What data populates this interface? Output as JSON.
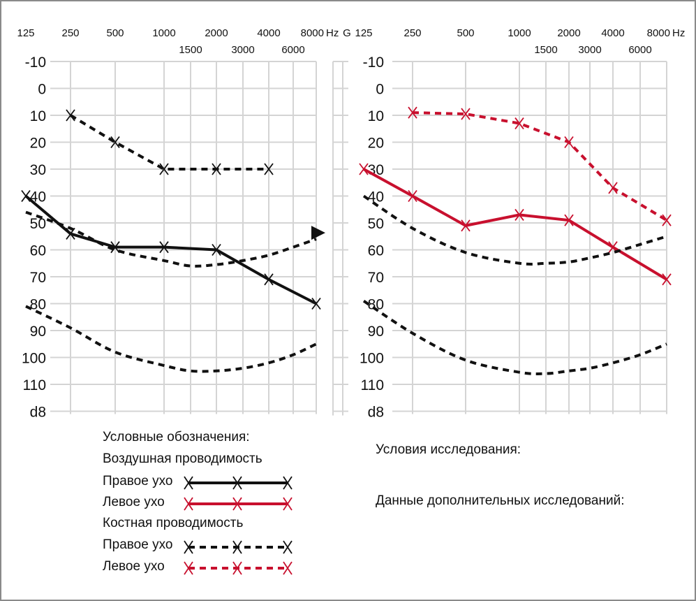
{
  "chart_data": [
    {
      "type": "line",
      "title": "",
      "xlabel": "Hz",
      "ylabel": "d8",
      "x_ticks_top": [
        "125",
        "250",
        "500",
        "1000",
        "2000",
        "4000",
        "8000"
      ],
      "x_ticks_bottom": [
        "1500",
        "3000",
        "6000"
      ],
      "x_unit": "Hz",
      "extra_column_label": "G",
      "y_ticks": [
        "-10",
        "0",
        "10",
        "20",
        "30",
        "40",
        "50",
        "60",
        "70",
        "80",
        "90",
        "100",
        "110"
      ],
      "y_unit_label": "d8",
      "ylim": [
        -10,
        120
      ],
      "y_inverted": true,
      "grid": true,
      "series": [
        {
          "name": "Правое ухо (воздушная)",
          "style": "solid",
          "color": "#111111",
          "marker": "x",
          "x": [
            125,
            250,
            500,
            1000,
            2000,
            4000,
            8000
          ],
          "values": [
            40,
            54,
            59,
            59,
            60,
            71,
            80
          ]
        },
        {
          "name": "Правое ухо (костная)",
          "style": "dashed",
          "color": "#111111",
          "marker": "x",
          "x": [
            250,
            500,
            1000,
            2000,
            4000
          ],
          "values": [
            10,
            20,
            30,
            30,
            30
          ]
        },
        {
          "name": "curve-upper",
          "style": "dashed",
          "color": "#111111",
          "marker": "none",
          "end_marker": "triangle",
          "x": [
            125,
            250,
            500,
            1000,
            1500,
            2000,
            3000,
            4000,
            6000,
            8000
          ],
          "values": [
            46,
            52,
            60,
            64,
            66,
            65.5,
            64,
            62,
            59,
            56
          ]
        },
        {
          "name": "curve-lower",
          "style": "dashed",
          "color": "#111111",
          "marker": "none",
          "x": [
            125,
            250,
            500,
            1000,
            1500,
            2000,
            3000,
            4000,
            6000,
            8000
          ],
          "values": [
            81,
            89,
            98,
            103,
            105,
            105,
            104,
            102,
            99,
            95
          ]
        }
      ]
    },
    {
      "type": "line",
      "title": "",
      "xlabel": "Hz",
      "ylabel": "d8",
      "x_ticks_top": [
        "125",
        "250",
        "500",
        "1000",
        "2000",
        "4000",
        "8000"
      ],
      "x_ticks_bottom": [
        "1500",
        "3000",
        "6000"
      ],
      "x_unit": "Hz",
      "y_ticks": [
        "-10",
        "0",
        "10",
        "20",
        "30",
        "40",
        "50",
        "60",
        "70",
        "80",
        "90",
        "100",
        "110"
      ],
      "y_unit_label": "d8",
      "ylim": [
        -10,
        120
      ],
      "y_inverted": true,
      "grid": true,
      "series": [
        {
          "name": "Левое ухо (воздушная)",
          "style": "solid",
          "color": "#c8102e",
          "marker": "x",
          "x": [
            125,
            250,
            500,
            1000,
            2000,
            4000,
            8000
          ],
          "values": [
            30,
            40,
            51,
            47,
            49,
            59,
            71
          ]
        },
        {
          "name": "Левое ухо (костная)",
          "style": "dashed",
          "color": "#c8102e",
          "marker": "x",
          "x": [
            250,
            500,
            1000,
            2000,
            4000,
            8000
          ],
          "values": [
            9,
            9.5,
            13,
            20,
            37,
            49
          ]
        },
        {
          "name": "curve-upper",
          "style": "dashed",
          "color": "#111111",
          "marker": "none",
          "x": [
            125,
            250,
            500,
            1000,
            1500,
            2000,
            3000,
            4000,
            6000,
            8000
          ],
          "values": [
            40,
            52,
            61,
            65,
            65,
            64.5,
            63,
            61,
            58,
            55
          ]
        },
        {
          "name": "curve-lower",
          "style": "dashed",
          "color": "#111111",
          "marker": "none",
          "x": [
            125,
            250,
            500,
            1000,
            1500,
            2000,
            3000,
            4000,
            6000,
            8000
          ],
          "values": [
            79,
            91,
            101,
            105.5,
            106,
            105,
            104,
            102,
            99,
            95
          ]
        }
      ]
    }
  ],
  "legend": {
    "title": "Условные обозначения:",
    "air_heading": "Воздушная проводимость",
    "bone_heading": "Костная проводимость",
    "right_ear": "Правое ухо",
    "left_ear": "Левое ухо",
    "colors": {
      "right": "#111111",
      "left": "#c8102e"
    }
  },
  "notes": {
    "conditions": "Условия исследования:",
    "additional": "Данные дополнительных исследований:"
  }
}
